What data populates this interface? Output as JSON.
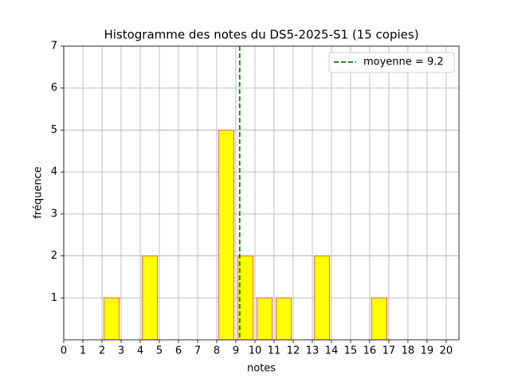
{
  "chart_data": {
    "type": "histogram",
    "title": "Histogramme des notes du DS5-2025-S1 (15 copies)",
    "x_label": "notes",
    "y_label": "fréquence",
    "bins": [
      0,
      1,
      2,
      3,
      4,
      5,
      6,
      7,
      8,
      9,
      10,
      11,
      12,
      13,
      14,
      15,
      16,
      17,
      18,
      19,
      20
    ],
    "values": [
      0,
      0,
      1,
      0,
      2,
      0,
      0,
      0,
      5,
      2,
      1,
      1,
      0,
      2,
      0,
      0,
      1,
      0,
      0,
      0
    ],
    "color": "#ffff00",
    "edge_color": "#e0607a",
    "mean": {
      "value": 9.2,
      "label": "moyenne = 9.2"
    },
    "mean_color": "#008000",
    "legend": "upper right",
    "grid": true,
    "xlim": [
      0,
      20.67
    ],
    "ylim": [
      0,
      7
    ],
    "xticks": [
      0,
      1,
      2,
      3,
      4,
      5,
      6,
      7,
      8,
      9,
      10,
      11,
      12,
      13,
      14,
      15,
      16,
      17,
      18,
      19,
      20
    ],
    "yticks": [
      1,
      2,
      3,
      4,
      5,
      6,
      7
    ]
  }
}
